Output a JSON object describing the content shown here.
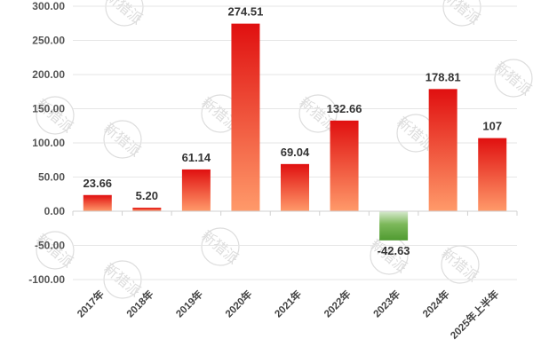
{
  "chart_data": {
    "type": "bar",
    "title": "",
    "xlabel": "",
    "ylabel": "",
    "categories": [
      "2017年",
      "2018年",
      "2019年",
      "2020年",
      "2021年",
      "2022年",
      "2023年",
      "2024年",
      "2025年上半年"
    ],
    "values": [
      23.66,
      5.2,
      61.14,
      274.51,
      69.04,
      132.66,
      -42.63,
      178.81,
      107
    ],
    "data_labels": [
      "23.66",
      "5.20",
      "61.14",
      "274.51",
      "69.04",
      "132.66",
      "-42.63",
      "178.81",
      "107"
    ],
    "ylim": [
      -100,
      300
    ],
    "yticks": [
      "300.00",
      "250.00",
      "200.00",
      "150.00",
      "100.00",
      "50.00",
      "0.00",
      "-50.00",
      "-100.00"
    ],
    "ytick_values": [
      300,
      250,
      200,
      150,
      100,
      50,
      0,
      -50,
      -100
    ],
    "grid": true,
    "legend": null,
    "colors": {
      "positive_top": "#e01010",
      "positive_bottom": "#ff9a6a",
      "negative_top": "#c8e0b8",
      "negative_bottom": "#4f9a30"
    },
    "watermark": "新猎派"
  }
}
